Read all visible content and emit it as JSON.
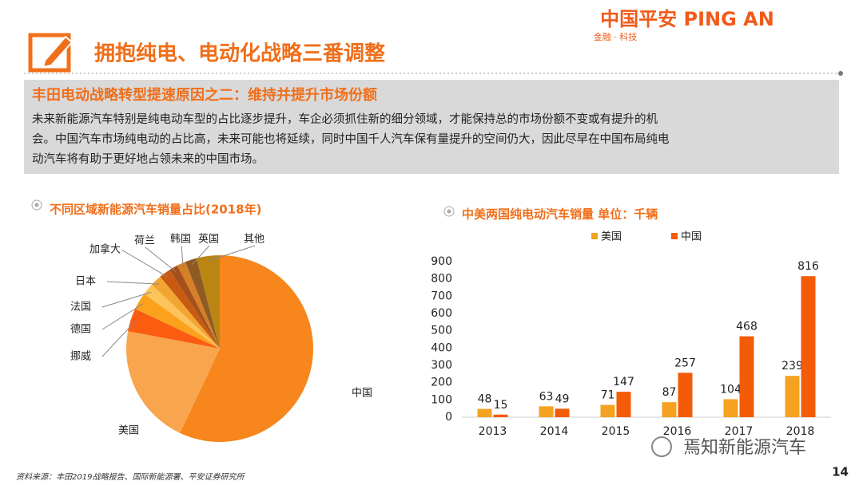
{
  "header": {
    "title": "拥抱纯电、电动化战略三番调整",
    "logo": "中国平安 PING AN",
    "logo_sub": "金融 · 科技"
  },
  "box": {
    "title": "丰田电动战略转型提速原因之二：维持并提升市场份额",
    "lines": [
      "未来新能源汽车特别是纯电动车型的占比逐步提升，车企必须抓住新的细分领域，才能保持总的市场份额不变或有提升的机",
      "会。中国汽车市场纯电动的占比高，未来可能也将延续，同时中国千人汽车保有量提升的空间仍大，因此尽早在中国布局纯电",
      "动汽车将有助于更好地占领未来的中国市场。"
    ]
  },
  "chart_data": [
    {
      "type": "pie",
      "title": "不同区域新能源汽车销量占比(2018年)",
      "categories": [
        "中国",
        "美国",
        "挪威",
        "德国",
        "法国",
        "日本",
        "加拿大",
        "荷兰",
        "韩国",
        "英国",
        "其他"
      ],
      "values": [
        57,
        21,
        4,
        3,
        2,
        2,
        2,
        1.5,
        1.5,
        2,
        4
      ],
      "colors": [
        "#f7861c",
        "#f9a54e",
        "#fb5c10",
        "#fca11c",
        "#fdc45a",
        "#f3a531",
        "#c95a12",
        "#a4501c",
        "#d77f26",
        "#8f5a24",
        "#b98613"
      ]
    },
    {
      "type": "bar",
      "title": "中美两国纯电动汽车销量 单位：千辆",
      "categories": [
        "2013",
        "2014",
        "2015",
        "2016",
        "2017",
        "2018"
      ],
      "series": [
        {
          "name": "美国",
          "color": "#f4a21f",
          "values": [
            48,
            63,
            71,
            87,
            104,
            239
          ]
        },
        {
          "name": "中国",
          "color": "#f45b07",
          "values": [
            15,
            49,
            147,
            257,
            468,
            816
          ]
        }
      ],
      "ylim": [
        0,
        900
      ],
      "yticks": [
        0,
        100,
        200,
        300,
        400,
        500,
        600,
        700,
        800,
        900
      ],
      "grid": false,
      "legend": "top"
    }
  ],
  "footer": {
    "source": "资料来源：丰田2019战略报告、国际新能源署、平安证券研究所",
    "page": "14",
    "watermark": "焉知新能源汽车"
  }
}
